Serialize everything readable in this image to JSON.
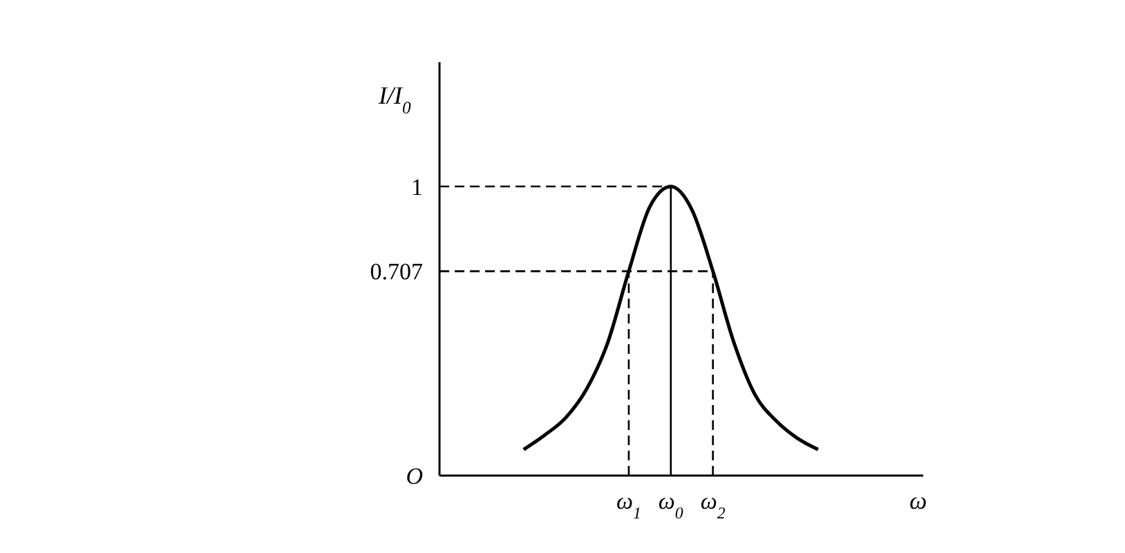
{
  "chart_data": {
    "type": "line",
    "xlabel": "ω",
    "ylabel": "I/I$_{0}$",
    "categories": [
      null,
      null,
      null,
      null,
      null,
      null,
      null,
      null,
      null,
      "ω$_{1}$",
      null,
      "ω$_{0}$",
      null,
      "ω$_{2}$",
      null,
      null,
      null,
      null,
      null,
      null,
      null,
      null,
      null,
      null
    ],
    "series": [
      {
        "color": "#000000",
        "values": [
          null,
          null,
          null,
          null,
          0.09,
          0.14,
          0.2,
          0.3,
          0.46,
          0.707,
          0.93,
          1,
          0.92,
          0.707,
          0.46,
          0.28,
          0.19,
          0.13,
          0.09,
          null,
          null,
          null,
          null,
          null
        ]
      }
    ],
    "ylim": [
      0,
      1.43
    ],
    "yticks": [
      {
        "value": 0,
        "label": "O"
      },
      0.707,
      1
    ],
    "ref_lines": [
      {
        "axis": "y",
        "value": 1,
        "line_style": "dashed"
      },
      {
        "axis": "y",
        "value": 0.707,
        "line_style": "dashed"
      },
      {
        "axis": "x",
        "value": "ω$_{1}$",
        "line_style": "dashed"
      },
      {
        "axis": "x",
        "value": "ω$_{0}$",
        "line_style": "solid"
      },
      {
        "axis": "x",
        "value": "ω$_{2}$",
        "line_style": "dashed"
      }
    ],
    "grid": false,
    "marker": "none",
    "line_style": "solid"
  }
}
